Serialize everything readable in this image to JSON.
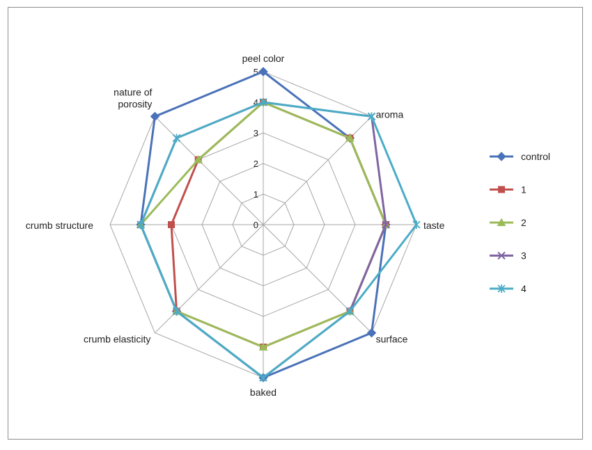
{
  "chart_data": {
    "type": "radar",
    "title": "",
    "axes": [
      {
        "label": [
          "peel color"
        ]
      },
      {
        "label": [
          "aroma"
        ]
      },
      {
        "label": [
          "taste"
        ]
      },
      {
        "label": [
          "surface"
        ]
      },
      {
        "label": [
          "baked"
        ]
      },
      {
        "label": [
          "crumb elasticity"
        ]
      },
      {
        "label": [
          "crumb structure"
        ]
      },
      {
        "label": [
          "nature of",
          "porosity"
        ]
      }
    ],
    "ticks": [
      "0",
      "1",
      "2",
      "3",
      "4",
      "5"
    ],
    "range": [
      0,
      5
    ],
    "legend_position": "right",
    "series": [
      {
        "name": "control",
        "color": "#4a72b8",
        "marker": "diamond",
        "values": [
          5,
          4,
          4,
          5,
          5,
          4,
          4,
          5
        ]
      },
      {
        "name": "1",
        "color": "#c0504d",
        "marker": "square",
        "values": [
          4,
          4,
          4,
          4,
          4,
          4,
          3,
          3
        ]
      },
      {
        "name": "2",
        "color": "#9bbb59",
        "marker": "triangle",
        "values": [
          4,
          4,
          4,
          4,
          4,
          4,
          4,
          3
        ]
      },
      {
        "name": "3",
        "color": "#8064a2",
        "marker": "x",
        "values": [
          4,
          5,
          4,
          4,
          5,
          4,
          4,
          4
        ]
      },
      {
        "name": "4",
        "color": "#4bacc6",
        "marker": "star",
        "values": [
          4,
          5,
          5,
          4,
          5,
          4,
          4,
          4
        ]
      }
    ]
  }
}
